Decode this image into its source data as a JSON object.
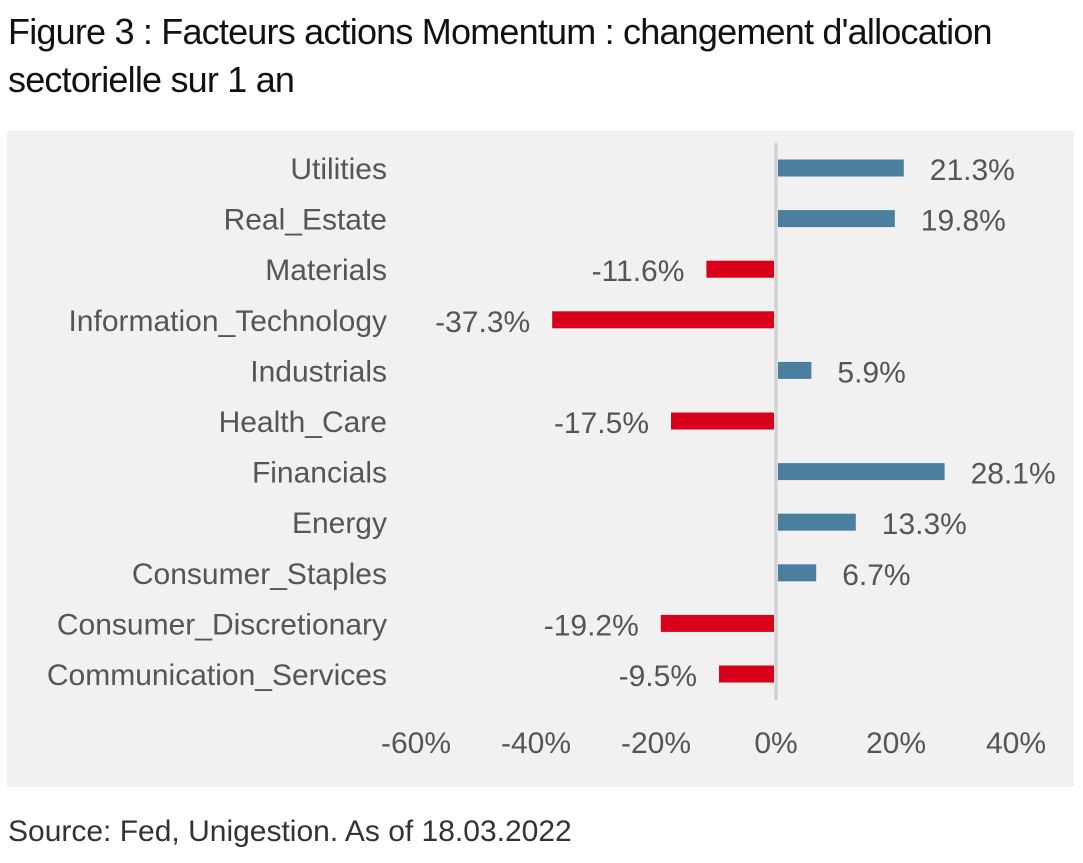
{
  "title": "Figure 3 : Facteurs actions Momentum : changement d'allocation sectorielle sur 1 an",
  "source": "Source: Fed, Unigestion. As of 18.03.2022",
  "colors": {
    "positive": "#4a7fa0",
    "negative": "#d9001b",
    "panel": "#f1f1f1",
    "zero_line": "#d0d0d0"
  },
  "chart_data": {
    "type": "bar",
    "orientation": "horizontal",
    "categories": [
      "Utilities",
      "Real_Estate",
      "Materials",
      "Information_Technology",
      "Industrials",
      "Health_Care",
      "Financials",
      "Energy",
      "Consumer_Staples",
      "Consumer_Discretionary",
      "Communication_Services"
    ],
    "values": [
      21.3,
      19.8,
      -11.6,
      -37.3,
      5.9,
      -17.5,
      28.1,
      13.3,
      6.7,
      -19.2,
      -9.5
    ],
    "value_labels": [
      "21.3%",
      "19.8%",
      "-11.6%",
      "-37.3%",
      "5.9%",
      "-17.5%",
      "28.1%",
      "13.3%",
      "6.7%",
      "-19.2%",
      "-9.5%"
    ],
    "xlim": [
      -60,
      40
    ],
    "ticks": [
      -60,
      -40,
      -20,
      0,
      20,
      40
    ],
    "tick_labels": [
      "-60%",
      "-40%",
      "-20%",
      "0%",
      "20%",
      "40%"
    ],
    "grid": false,
    "legend": "none"
  }
}
